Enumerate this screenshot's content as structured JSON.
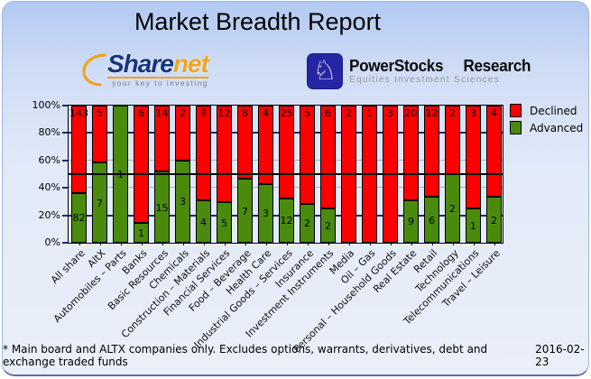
{
  "header": {
    "title": "Market Breadth Report"
  },
  "logos": {
    "sharenet": {
      "part1": "Share",
      "part2": "net",
      "tagline": "your key to investing"
    },
    "powerstocks": {
      "title": "PowerStocks  Research",
      "subtitle": "Equities Investment Sciences",
      "icon": "knight-chess-piece",
      "knight_glyph": "♘"
    }
  },
  "chart_data": {
    "type": "bar",
    "stacked": true,
    "display": "percent_stacked",
    "categories": [
      "All share",
      "AltX",
      "Automobiles – Parts",
      "Banks",
      "Basic Resources",
      "Chemicals",
      "Construction – Materials",
      "Financial Services",
      "Food – Beverage",
      "Health Care",
      "Industrial Goods – Services",
      "Insurance",
      "Investment Instruments",
      "Media",
      "Oil – Gas",
      "Personal – Household Goods",
      "Real Estate",
      "Retail",
      "Technology",
      "Telecommunications",
      "Travel – Leisure"
    ],
    "series": [
      {
        "name": "Declined",
        "color": "#fe0000",
        "values": [
          143,
          5,
          0,
          6,
          14,
          2,
          9,
          12,
          8,
          4,
          25,
          5,
          6,
          2,
          1,
          3,
          20,
          12,
          2,
          3,
          4
        ]
      },
      {
        "name": "Advanced",
        "color": "#4a8b0d",
        "values": [
          82,
          7,
          1,
          1,
          15,
          3,
          4,
          5,
          7,
          3,
          12,
          2,
          2,
          0,
          0,
          0,
          9,
          6,
          2,
          1,
          2
        ]
      }
    ],
    "y_axis": {
      "ticks": [
        "100%",
        "80%",
        "60%",
        "40%",
        "20%",
        "0%"
      ],
      "min": 0,
      "max": 100,
      "unit": "%"
    },
    "midline_percent": 50,
    "legend": {
      "position": "top-right",
      "entries": [
        "Declined",
        "Advanced"
      ]
    },
    "grid": {
      "major_color": "#1c2b6e",
      "minor_color": "#abb1bc",
      "midline_color": "#000000"
    }
  },
  "footer": {
    "note": "* Main board and ALTX companies only. Excludes options, warrants, derivatives, debt and exchange traded funds",
    "date": "2016-02-23"
  }
}
